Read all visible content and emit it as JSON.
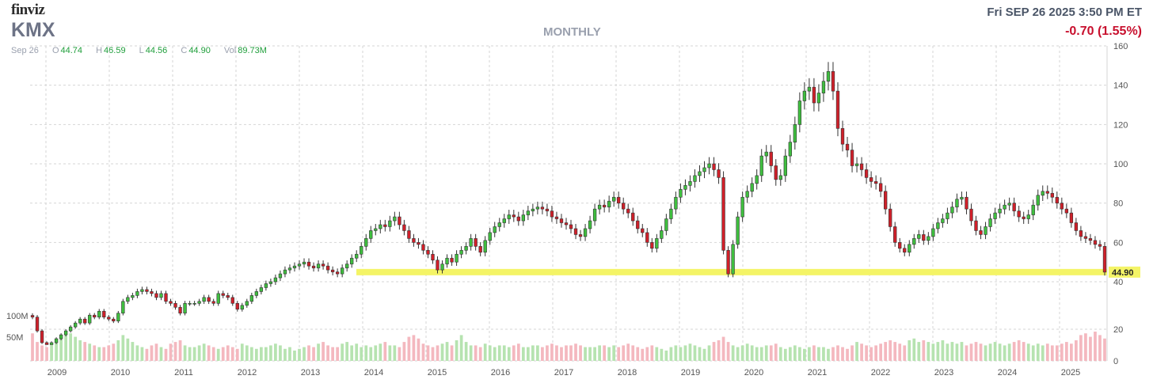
{
  "header": {
    "logo": "finviz",
    "ticker": "KMX",
    "timeframe": "MONTHLY",
    "datetime": "Fri SEP 26 2025 3:50 PM ET",
    "change": "-0.70 (1.55%)",
    "ohlc": {
      "date": "Sep 26",
      "open_label": "O",
      "open": "44.74",
      "high_label": "H",
      "high": "46.59",
      "low_label": "L",
      "low": "44.56",
      "close_label": "C",
      "close": "44.90",
      "vol_label": "Vol",
      "vol": "89.73M"
    }
  },
  "colors": {
    "up": "#3fbf3f",
    "down": "#d0202a",
    "vol_up": "#b6e3b0",
    "vol_down": "#f4b8bf",
    "support": "#f4f466",
    "grid": "#d6d6d6",
    "label": "#555555"
  },
  "chart_data": {
    "type": "candlestick",
    "title": "KMX",
    "interval": "MONTHLY",
    "x_tick_labels": [
      "2009",
      "2010",
      "2011",
      "2012",
      "2013",
      "2014",
      "2015",
      "2016",
      "2017",
      "2018",
      "2019",
      "2020",
      "2021",
      "2022",
      "2023",
      "2024",
      "2025"
    ],
    "price_axis": {
      "ylim": [
        40,
        160
      ],
      "ticks": [
        40,
        60,
        80,
        100,
        120,
        140,
        160
      ]
    },
    "volume_axis": {
      "ylim": [
        0,
        25
      ],
      "ticks": [
        0,
        20
      ],
      "left_labels": [
        "100M",
        "50M"
      ]
    },
    "last_price_label": "44.90",
    "support_level": 44.9,
    "support_start_year": 2013.9,
    "start_year": 2008.75,
    "months_per_year": 12,
    "closes": [
      22,
      15,
      9,
      8,
      9,
      11,
      13,
      15,
      17,
      19,
      21,
      19,
      23,
      22,
      25,
      22,
      21,
      20,
      24,
      30,
      32,
      33,
      35,
      36,
      35,
      34,
      32,
      34,
      30,
      29,
      27,
      24,
      29,
      29,
      29,
      30,
      32,
      30,
      29,
      34,
      33,
      32,
      29,
      26,
      28,
      30,
      33,
      35,
      37,
      39,
      40,
      42,
      44,
      46,
      47,
      48,
      49,
      50,
      48,
      47,
      49,
      48,
      46,
      45,
      44,
      47,
      49,
      52,
      54,
      58,
      62,
      66,
      67,
      69,
      68,
      71,
      73,
      69,
      66,
      62,
      60,
      59,
      56,
      54,
      51,
      46,
      49,
      52,
      50,
      54,
      56,
      58,
      62,
      58,
      55,
      61,
      65,
      68,
      70,
      72,
      74,
      73,
      71,
      74,
      76,
      77,
      78,
      77,
      76,
      73,
      72,
      70,
      69,
      67,
      64,
      63,
      67,
      71,
      77,
      79,
      78,
      81,
      83,
      80,
      77,
      75,
      71,
      67,
      65,
      60,
      57,
      62,
      66,
      72,
      77,
      83,
      87,
      89,
      91,
      94,
      96,
      98,
      100,
      97,
      93,
      56,
      44,
      59,
      73,
      83,
      86,
      90,
      94,
      104,
      106,
      99,
      92,
      94,
      104,
      111,
      120,
      132,
      137,
      139,
      131,
      136,
      142,
      147,
      137,
      118,
      110,
      107,
      99,
      100,
      97,
      93,
      91,
      90,
      86,
      77,
      68,
      60,
      57,
      55,
      59,
      62,
      64,
      61,
      63,
      67,
      70,
      72,
      75,
      78,
      82,
      83,
      77,
      71,
      66,
      64,
      68,
      72,
      75,
      77,
      79,
      80,
      76,
      73,
      72,
      74,
      79,
      84,
      86,
      85,
      83,
      80,
      77,
      75,
      70,
      66,
      63,
      62,
      61,
      59,
      58,
      44.9
    ],
    "volumes_M": [
      80,
      55,
      45,
      40,
      50,
      60,
      70,
      75,
      80,
      70,
      60,
      55,
      50,
      45,
      40,
      40,
      45,
      50,
      60,
      75,
      65,
      55,
      45,
      40,
      35,
      45,
      50,
      40,
      35,
      50,
      55,
      60,
      45,
      40,
      40,
      45,
      50,
      45,
      40,
      35,
      40,
      45,
      40,
      35,
      50,
      45,
      40,
      35,
      40,
      40,
      45,
      50,
      45,
      35,
      40,
      30,
      35,
      40,
      45,
      40,
      50,
      55,
      45,
      40,
      40,
      50,
      55,
      45,
      50,
      40,
      45,
      40,
      45,
      50,
      55,
      45,
      45,
      40,
      55,
      70,
      75,
      65,
      50,
      45,
      40,
      45,
      50,
      55,
      45,
      60,
      75,
      55,
      45,
      45,
      40,
      50,
      45,
      40,
      45,
      45,
      40,
      45,
      50,
      40,
      40,
      45,
      45,
      40,
      45,
      50,
      45,
      40,
      45,
      45,
      50,
      45,
      40,
      40,
      40,
      45,
      45,
      40,
      45,
      40,
      45,
      50,
      45,
      40,
      35,
      40,
      45,
      40,
      35,
      30,
      40,
      45,
      40,
      45,
      50,
      45,
      40,
      35,
      45,
      55,
      60,
      70,
      55,
      45,
      40,
      45,
      50,
      45,
      40,
      40,
      45,
      45,
      50,
      40,
      35,
      40,
      45,
      40,
      35,
      40,
      45,
      40,
      40,
      35,
      40,
      45,
      40,
      35,
      45,
      55,
      50,
      45,
      40,
      45,
      50,
      55,
      60,
      55,
      50,
      45,
      60,
      65,
      55,
      60,
      55,
      50,
      55,
      60,
      50,
      55,
      50,
      55,
      45,
      50,
      55,
      50,
      45,
      50,
      55,
      50,
      45,
      50,
      55,
      60,
      55,
      50,
      45,
      50,
      45,
      50,
      45,
      45,
      50,
      55,
      50,
      60,
      75,
      80,
      70,
      85,
      75,
      65,
      89.73
    ]
  }
}
